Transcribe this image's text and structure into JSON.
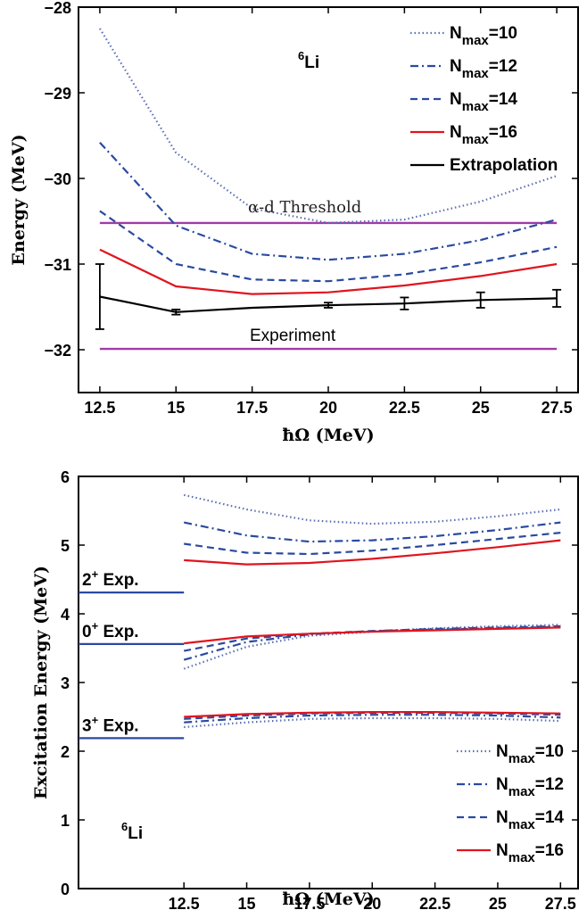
{
  "chart_data": [
    {
      "type": "line",
      "title": "",
      "annotation_label": "Li",
      "annotation_sup": "6",
      "xlabel": "ħΩ (MeV)",
      "ylabel": "Energy (MeV)",
      "xlim": [
        11.8,
        28.2
      ],
      "ylim": [
        -32.5,
        -28
      ],
      "xticks": [
        "12.5",
        "15",
        "17.5",
        "20",
        "22.5",
        "25",
        "27.5"
      ],
      "yticks": [
        "−28",
        "−29",
        "−30",
        "−31",
        "−32"
      ],
      "x": [
        12.5,
        15,
        17.5,
        20,
        22.5,
        25,
        27.5
      ],
      "series": [
        {
          "name": "N_max=10",
          "label_main": "N",
          "label_sub": "max",
          "label_tail": "=10",
          "style": "dotted",
          "color": "#5a6fb0",
          "values": [
            -28.25,
            -29.7,
            -30.35,
            -30.52,
            -30.48,
            -30.27,
            -29.97
          ]
        },
        {
          "name": "N_max=12",
          "label_main": "N",
          "label_sub": "max",
          "label_tail": "=12",
          "style": "dashdot",
          "color": "#2a4aa0",
          "values": [
            -29.58,
            -30.55,
            -30.88,
            -30.95,
            -30.88,
            -30.72,
            -30.48
          ]
        },
        {
          "name": "N_max=14",
          "label_main": "N",
          "label_sub": "max",
          "label_tail": "=14",
          "style": "dashed",
          "color": "#2a4aa0",
          "values": [
            -30.38,
            -31.0,
            -31.18,
            -31.2,
            -31.12,
            -30.98,
            -30.8
          ]
        },
        {
          "name": "N_max=16",
          "label_main": "N",
          "label_sub": "max",
          "label_tail": "=16",
          "style": "solid",
          "color": "#e0141e",
          "values": [
            -30.83,
            -31.26,
            -31.35,
            -31.33,
            -31.25,
            -31.14,
            -31.0
          ]
        },
        {
          "name": "Extrapolation",
          "label_main": "Extrapolation",
          "label_sub": "",
          "label_tail": "",
          "style": "solid",
          "color": "#000000",
          "values": [
            -31.38,
            -31.56,
            -31.51,
            -31.48,
            -31.46,
            -31.42,
            -31.4
          ],
          "errors": [
            0.38,
            0.03,
            0.0,
            0.03,
            0.07,
            0.09,
            0.1
          ]
        }
      ],
      "hlines": [
        {
          "label": "α-d Threshold",
          "value": -30.52,
          "color": "#a23aa8"
        },
        {
          "label": "Experiment",
          "value": -31.99,
          "color": "#a23aa8"
        }
      ]
    },
    {
      "type": "line",
      "title": "",
      "annotation_label": "Li",
      "annotation_sup": "6",
      "xlabel": "ħΩ (MeV)",
      "ylabel": "Excitation Energy (MeV)",
      "xlim": [
        8.3,
        28.2
      ],
      "ylim": [
        0,
        6
      ],
      "xticks": [
        "12.5",
        "15",
        "17.5",
        "20",
        "22.5",
        "25",
        "27.5"
      ],
      "yticks": [
        "0",
        "1",
        "2",
        "3",
        "4",
        "5",
        "6"
      ],
      "x": [
        12.5,
        15,
        17.5,
        20,
        22.5,
        25,
        27.5
      ],
      "experiment_levels": [
        {
          "label": "Exp.",
          "state": "2",
          "parity": "+",
          "value": 4.31
        },
        {
          "label": "Exp.",
          "state": "0",
          "parity": "+",
          "value": 3.56
        },
        {
          "label": "Exp.",
          "state": "3",
          "parity": "+",
          "value": 2.19
        }
      ],
      "series": [
        {
          "name": "N_max=10",
          "label_main": "N",
          "label_sub": "max",
          "label_tail": "=10",
          "style": "dotted",
          "color": "#5a6fb0",
          "state2": [
            5.73,
            5.52,
            5.36,
            5.31,
            5.34,
            5.42,
            5.52
          ],
          "state0": [
            3.2,
            3.52,
            3.68,
            3.74,
            3.79,
            3.82,
            3.84
          ],
          "state3": [
            2.35,
            2.42,
            2.47,
            2.48,
            2.48,
            2.47,
            2.44
          ]
        },
        {
          "name": "N_max=12",
          "label_main": "N",
          "label_sub": "max",
          "label_tail": "=12",
          "style": "dashdot",
          "color": "#2a4aa0",
          "state2": [
            5.33,
            5.14,
            5.05,
            5.07,
            5.13,
            5.22,
            5.33
          ],
          "state0": [
            3.33,
            3.59,
            3.7,
            3.75,
            3.78,
            3.8,
            3.82
          ],
          "state3": [
            2.42,
            2.48,
            2.52,
            2.53,
            2.53,
            2.52,
            2.49
          ]
        },
        {
          "name": "N_max=14",
          "label_main": "N",
          "label_sub": "max",
          "label_tail": "=14",
          "style": "dashed",
          "color": "#2a4aa0",
          "state2": [
            5.02,
            4.89,
            4.87,
            4.92,
            5.0,
            5.09,
            5.18
          ],
          "state0": [
            3.46,
            3.64,
            3.71,
            3.75,
            3.77,
            3.79,
            3.81
          ],
          "state3": [
            2.47,
            2.52,
            2.55,
            2.56,
            2.56,
            2.55,
            2.53
          ]
        },
        {
          "name": "N_max=16",
          "label_main": "N",
          "label_sub": "max",
          "label_tail": "=16",
          "style": "solid",
          "color": "#e0141e",
          "state2": [
            4.78,
            4.72,
            4.74,
            4.8,
            4.88,
            4.97,
            5.07
          ],
          "state0": [
            3.57,
            3.67,
            3.71,
            3.74,
            3.76,
            3.78,
            3.8
          ],
          "state3": [
            2.5,
            2.54,
            2.56,
            2.57,
            2.57,
            2.56,
            2.55
          ]
        }
      ]
    }
  ]
}
